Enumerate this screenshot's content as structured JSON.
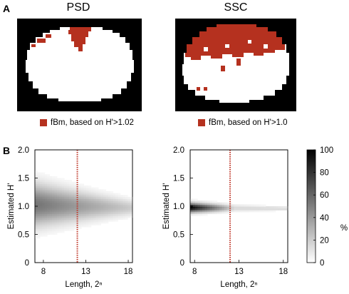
{
  "panels": {
    "a_label": "A",
    "b_label": "B"
  },
  "masks": {
    "left_title": "PSD",
    "right_title": "SSC",
    "left_legend": "fBm, based on H'>1.02",
    "right_legend": "fBm, based on H'>1.0",
    "fbm_color": "#b5311f"
  },
  "chart_data": [
    {
      "type": "heatmap",
      "title": "",
      "xlabel": "Length, 2ⁿ",
      "ylabel": "Estimated H'",
      "x_ticks": [
        "8",
        "13",
        "18"
      ],
      "y_ticks": [
        "0",
        "0.5",
        "1.0",
        "1.5",
        "2.0"
      ],
      "xlim": [
        7,
        18.5
      ],
      "ylim": [
        0,
        2
      ],
      "marker_x": 12,
      "marker_color": "#c0392b",
      "peak_y": 1.03
    },
    {
      "type": "heatmap",
      "title": "",
      "xlabel": "Length, 2ⁿ",
      "ylabel": "Estimated H'",
      "x_ticks": [
        "8",
        "13",
        "18"
      ],
      "y_ticks": [
        "0",
        "0.5",
        "1.0",
        "1.5",
        "2.0"
      ],
      "xlim": [
        7.5,
        18.5
      ],
      "ylim": [
        0,
        2
      ],
      "marker_x": 12,
      "marker_color": "#c0392b",
      "peak_y": 0.98
    }
  ],
  "colorbar": {
    "ticks": [
      "100",
      "80",
      "60",
      "40",
      "20",
      "0"
    ],
    "unit": "%",
    "range": [
      0,
      100
    ]
  }
}
